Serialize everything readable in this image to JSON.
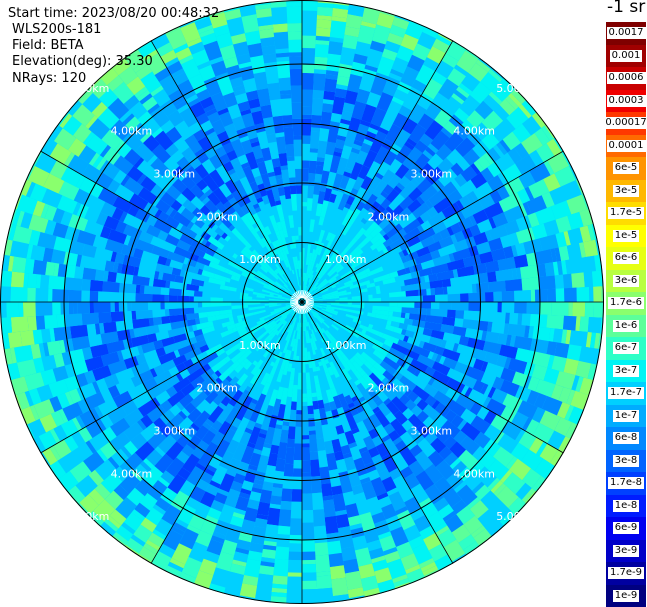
{
  "info": {
    "start_time": "Start time: 2023/08/20 00:48:32",
    "instrument": "WLS200s-181",
    "field": "Field: BETA",
    "elevation": "Elevation(deg): 35.30",
    "nrays": "NRays: 120"
  },
  "ring_labels": [
    "1.00km",
    "2.00km",
    "3.00km",
    "4.00km",
    "5.00km"
  ],
  "colorbar": {
    "title": "-1 sr",
    "labels": [
      "0.0017",
      "0.001",
      "0.0006",
      "0.0003",
      "0.00017",
      "0.0001",
      "6e-5",
      "3e-5",
      "1.7e-5",
      "1e-5",
      "6e-6",
      "3e-6",
      "1.7e-6",
      "1e-6",
      "6e-7",
      "3e-7",
      "1.7e-7",
      "1e-7",
      "6e-8",
      "3e-8",
      "1.7e-8",
      "1e-8",
      "6e-9",
      "3e-9",
      "1.7e-9",
      "1e-9"
    ],
    "colors": [
      "#7f0000",
      "#a00000",
      "#c80000",
      "#f00000",
      "#ff3800",
      "#ff6a00",
      "#ff9400",
      "#ffb800",
      "#ffdc00",
      "#ffff00",
      "#e6ff12",
      "#b8ff40",
      "#8aff6d",
      "#5cff9a",
      "#2effc7",
      "#00f4f4",
      "#00d0ff",
      "#00acff",
      "#0088ff",
      "#0064ff",
      "#0040ff",
      "#001cff",
      "#0000f0",
      "#0000c8",
      "#0000a0",
      "#000080"
    ]
  }
}
